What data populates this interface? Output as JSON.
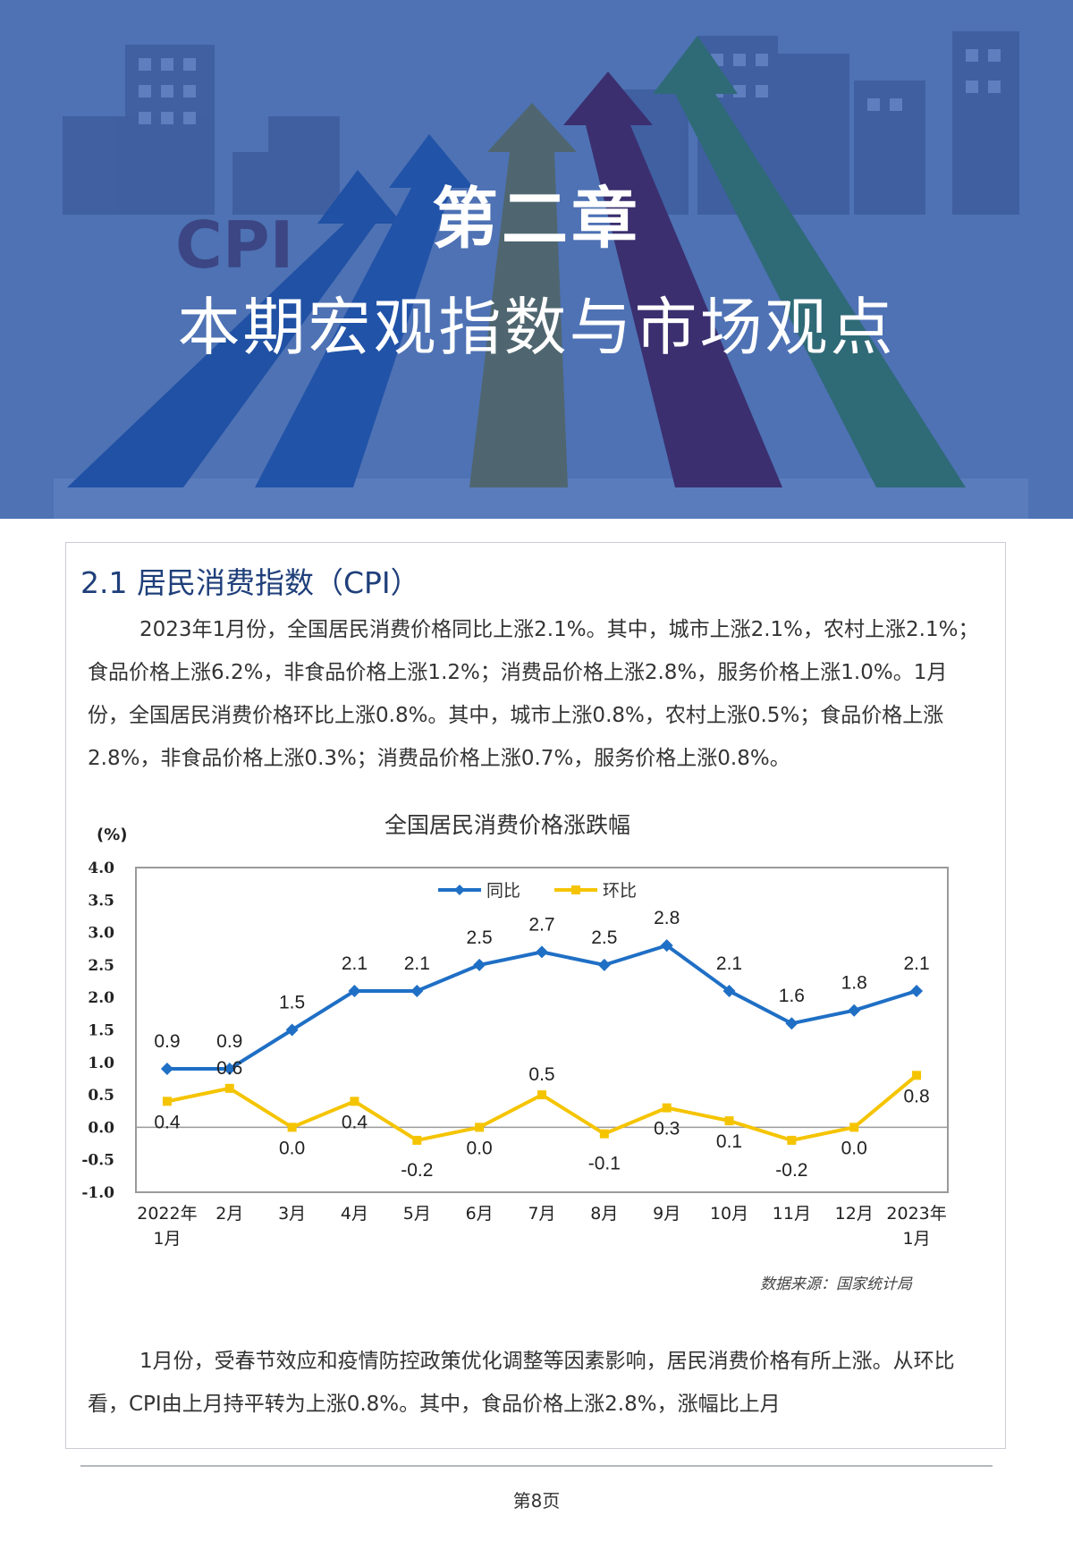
{
  "banner": {
    "chapter": "第二章",
    "subtitle": "本期宏观指数与市场观点",
    "decor_text": "CPI",
    "background_color": "#4e72b4"
  },
  "section": {
    "title": "2.1 居民消费指数（CPI）"
  },
  "paragraphs": {
    "intro": "2023年1月份，全国居民消费价格同比上涨2.1%。其中，城市上涨2.1%，农村上涨2.1%；食品价格上涨6.2%，非食品价格上涨1.2%；消费品价格上涨2.8%，服务价格上涨1.0%。1月份，全国居民消费价格环比上涨0.8%。其中，城市上涨0.8%，农村上涨0.5%；食品价格上涨2.8%，非食品价格上涨0.3%；消费品价格上涨0.7%，服务价格上涨0.8%。",
    "analysis": "1月份，受春节效应和疫情防控政策优化调整等因素影响，居民消费价格有所上涨。从环比看，CPI由上月持平转为上涨0.8%。其中，食品价格上涨2.8%，涨幅比上月"
  },
  "chart_data": {
    "type": "line",
    "title": "全国居民消费价格涨跌幅",
    "unit_label": "(%)",
    "categories": [
      "2022年\n1月",
      "2月",
      "3月",
      "4月",
      "5月",
      "6月",
      "7月",
      "8月",
      "9月",
      "10月",
      "11月",
      "12月",
      "2023年\n1月"
    ],
    "series": [
      {
        "name": "同比",
        "color": "#1f6fc5",
        "values": [
          0.9,
          0.9,
          1.5,
          2.1,
          2.1,
          2.5,
          2.7,
          2.5,
          2.8,
          2.1,
          1.6,
          1.8,
          2.1
        ]
      },
      {
        "name": "环比",
        "color": "#f5c400",
        "values": [
          0.4,
          0.6,
          0.0,
          0.4,
          -0.2,
          0.0,
          0.5,
          -0.1,
          0.3,
          0.1,
          -0.2,
          0.0,
          0.8
        ]
      }
    ],
    "ylim": [
      -1.0,
      4.0
    ],
    "yticks": [
      "4.0",
      "3.5",
      "3.0",
      "2.5",
      "2.0",
      "1.5",
      "1.0",
      "0.5",
      "0.0",
      "-0.5",
      "-1.0"
    ],
    "legend_position": "top-center",
    "grid": false
  },
  "source_note": "数据来源：国家统计局",
  "footer": {
    "page_number": "第8页"
  }
}
